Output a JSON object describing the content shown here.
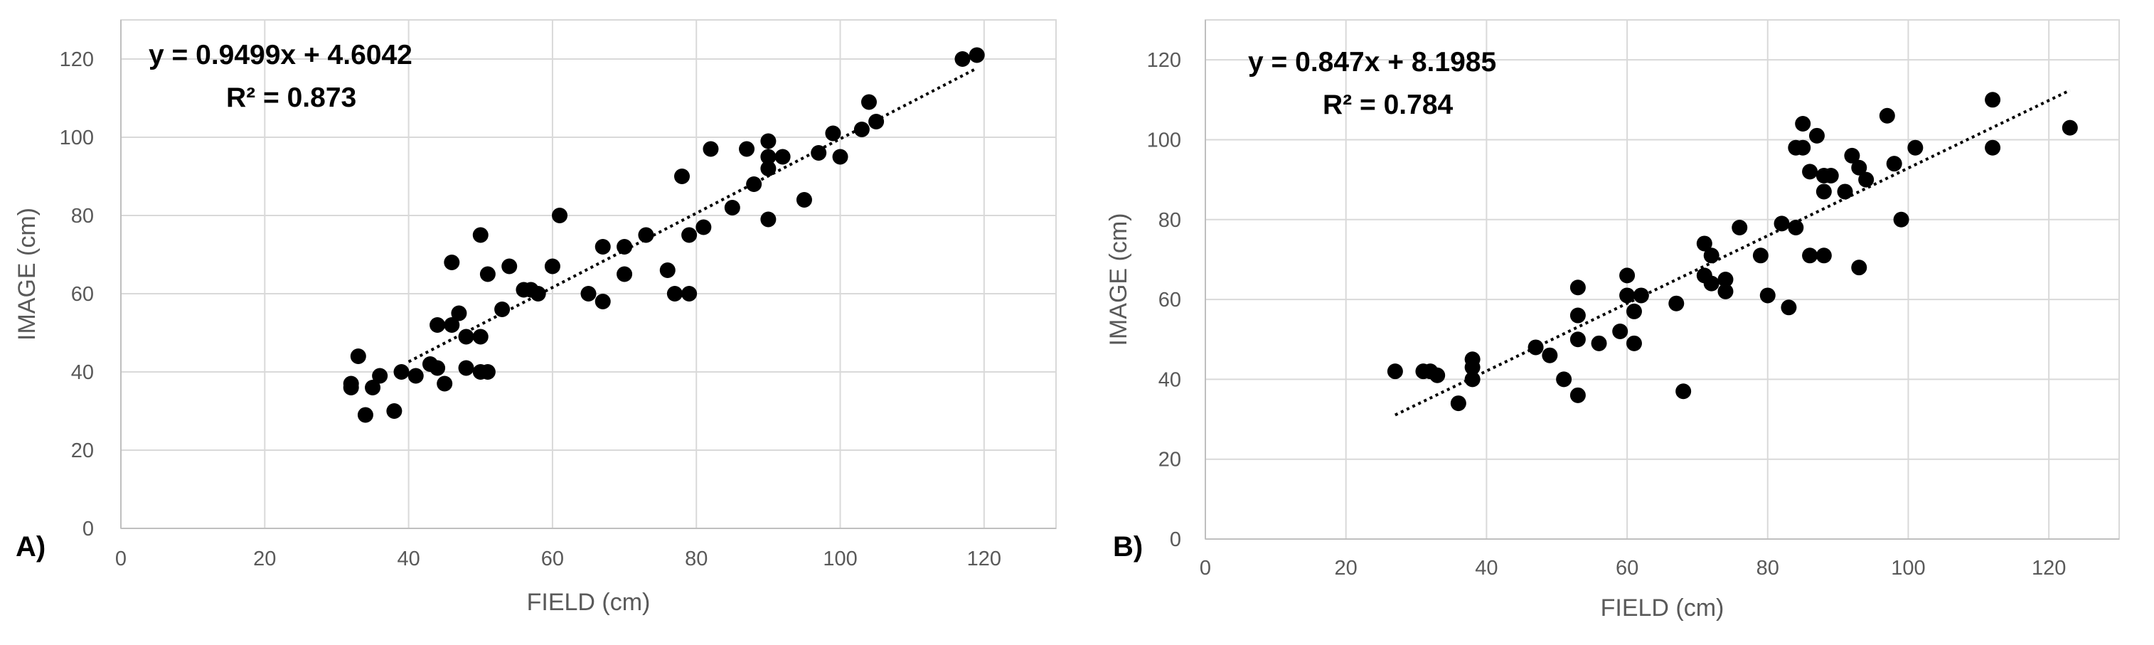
{
  "charts": [
    {
      "panel_label": "A)",
      "chart_data": {
        "type": "scatter",
        "xlabel": "FIELD (cm)",
        "ylabel": "IMAGE (cm)",
        "xlim": [
          0,
          130
        ],
        "ylim": [
          0,
          130
        ],
        "xticks": [
          0,
          20,
          40,
          60,
          80,
          100,
          120
        ],
        "yticks": [
          0,
          20,
          40,
          60,
          80,
          100,
          120
        ],
        "grid": true,
        "trendline": {
          "type": "linear",
          "slope": 0.9499,
          "intercept": 4.6042,
          "x_range": [
            40,
            119
          ],
          "style": "dotted"
        },
        "equation": "y = 0.9499x + 4.6042",
        "r_squared": "R² = 0.873",
        "points": [
          [
            32,
            37
          ],
          [
            32,
            36
          ],
          [
            33,
            44
          ],
          [
            34,
            29
          ],
          [
            35,
            36
          ],
          [
            36,
            39
          ],
          [
            38,
            30
          ],
          [
            39,
            40
          ],
          [
            41,
            39
          ],
          [
            43,
            42
          ],
          [
            44,
            52
          ],
          [
            44,
            41
          ],
          [
            45,
            37
          ],
          [
            46,
            52
          ],
          [
            46,
            68
          ],
          [
            47,
            55
          ],
          [
            48,
            49
          ],
          [
            48,
            41
          ],
          [
            50,
            49
          ],
          [
            50,
            40
          ],
          [
            50,
            75
          ],
          [
            51,
            40
          ],
          [
            51,
            65
          ],
          [
            53,
            56
          ],
          [
            54,
            67
          ],
          [
            56,
            61
          ],
          [
            57,
            61
          ],
          [
            58,
            60
          ],
          [
            60,
            67
          ],
          [
            61,
            80
          ],
          [
            65,
            60
          ],
          [
            67,
            72
          ],
          [
            67,
            58
          ],
          [
            70,
            72
          ],
          [
            70,
            65
          ],
          [
            73,
            75
          ],
          [
            76,
            66
          ],
          [
            77,
            60
          ],
          [
            78,
            90
          ],
          [
            79,
            60
          ],
          [
            79,
            75
          ],
          [
            81,
            77
          ],
          [
            82,
            97
          ],
          [
            85,
            82
          ],
          [
            87,
            97
          ],
          [
            88,
            88
          ],
          [
            90,
            99
          ],
          [
            90,
            95
          ],
          [
            90,
            92
          ],
          [
            90,
            79
          ],
          [
            92,
            95
          ],
          [
            95,
            84
          ],
          [
            97,
            96
          ],
          [
            99,
            101
          ],
          [
            100,
            95
          ],
          [
            103,
            102
          ],
          [
            104,
            109
          ],
          [
            105,
            104
          ],
          [
            117,
            120
          ],
          [
            119,
            121
          ]
        ]
      }
    },
    {
      "panel_label": "B)",
      "chart_data": {
        "type": "scatter",
        "xlabel": "FIELD (cm)",
        "ylabel": "IMAGE (cm)",
        "xlim": [
          0,
          130
        ],
        "ylim": [
          0,
          130
        ],
        "xticks": [
          0,
          20,
          40,
          60,
          80,
          100,
          120
        ],
        "yticks": [
          0,
          20,
          40,
          60,
          80,
          100,
          120
        ],
        "grid": true,
        "trendline": {
          "type": "linear",
          "slope": 0.847,
          "intercept": 8.1985,
          "x_range": [
            27,
            123
          ],
          "style": "dotted"
        },
        "equation": "y = 0.847x + 8.1985",
        "r_squared": "R² = 0.784",
        "points": [
          [
            27,
            42
          ],
          [
            31,
            42
          ],
          [
            32,
            42
          ],
          [
            33,
            41
          ],
          [
            36,
            34
          ],
          [
            38,
            45
          ],
          [
            38,
            43
          ],
          [
            38,
            40
          ],
          [
            47,
            48
          ],
          [
            49,
            46
          ],
          [
            51,
            40
          ],
          [
            53,
            63
          ],
          [
            53,
            56
          ],
          [
            53,
            50
          ],
          [
            53,
            36
          ],
          [
            56,
            49
          ],
          [
            59,
            52
          ],
          [
            60,
            66
          ],
          [
            60,
            61
          ],
          [
            61,
            57
          ],
          [
            61,
            49
          ],
          [
            62,
            61
          ],
          [
            67,
            59
          ],
          [
            68,
            37
          ],
          [
            71,
            74
          ],
          [
            71,
            66
          ],
          [
            72,
            71
          ],
          [
            72,
            64
          ],
          [
            74,
            65
          ],
          [
            74,
            62
          ],
          [
            76,
            78
          ],
          [
            79,
            71
          ],
          [
            80,
            61
          ],
          [
            82,
            79
          ],
          [
            83,
            58
          ],
          [
            84,
            98
          ],
          [
            84,
            78
          ],
          [
            85,
            104
          ],
          [
            85,
            98
          ],
          [
            86,
            92
          ],
          [
            86,
            71
          ],
          [
            87,
            101
          ],
          [
            88,
            91
          ],
          [
            88,
            87
          ],
          [
            88,
            71
          ],
          [
            89,
            91
          ],
          [
            91,
            87
          ],
          [
            92,
            96
          ],
          [
            93,
            93
          ],
          [
            93,
            68
          ],
          [
            94,
            90
          ],
          [
            97,
            106
          ],
          [
            98,
            94
          ],
          [
            99,
            80
          ],
          [
            101,
            98
          ],
          [
            112,
            110
          ],
          [
            112,
            98
          ],
          [
            123,
            103
          ]
        ]
      }
    }
  ]
}
